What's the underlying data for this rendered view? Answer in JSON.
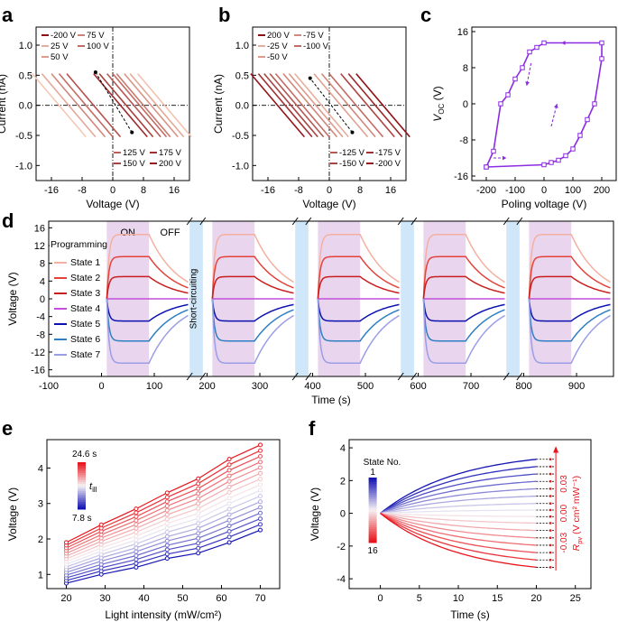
{
  "colors": {
    "state_colors": [
      "#f4b0a0",
      "#e4433c",
      "#c81e1e",
      "#c44fdc",
      "#0b12b0",
      "#2f7fc2",
      "#9a9ee6"
    ],
    "on_band": "#e9d6ee",
    "short_band": "#cfe7f8",
    "hyst": "#8b2be2",
    "pos_shades": [
      "#f7c9b4",
      "#f2a184",
      "#f7a35c",
      "#e4523c",
      "#c2181c",
      "#8e0f14"
    ],
    "neg_shades": [
      "#8e0f14",
      "#c2181c",
      "#e4523c",
      "#f7a35c",
      "#f2a184",
      "#f7c9b4"
    ]
  },
  "panels": {
    "a": {
      "label": "a"
    },
    "b": {
      "label": "b"
    },
    "c": {
      "label": "c"
    },
    "d": {
      "label": "d"
    },
    "e": {
      "label": "e"
    },
    "f": {
      "label": "f"
    }
  },
  "chart_data": [
    {
      "id": "a",
      "type": "line",
      "xlabel": "Voltage (V)",
      "ylabel": "Current (nA)",
      "xlim": [
        -20,
        20
      ],
      "ylim": [
        -1.25,
        1.3
      ],
      "xticks": [
        -16,
        -8,
        0,
        8,
        16
      ],
      "yticks": [
        -1.0,
        -0.5,
        0.0,
        0.5,
        1.0
      ],
      "legend_top": [
        {
          "name": "-200 V",
          "voc": -14
        },
        {
          "name": "75 V",
          "voc": 5.5
        },
        {
          "name": "25 V",
          "voc": 2
        },
        {
          "name": "100 V",
          "voc": 7
        },
        {
          "name": "50 V",
          "voc": 3.5
        }
      ],
      "legend_bottom": [
        {
          "name": "125 V",
          "voc": 8
        },
        {
          "name": "175 V",
          "voc": 11.5
        },
        {
          "name": "150 V",
          "voc": 10
        },
        {
          "name": "200 V",
          "voc": 13.5
        }
      ],
      "series_voc": [
        -14,
        -11.5,
        -9,
        -7,
        -5,
        2,
        3.5,
        5.5,
        7,
        8,
        10,
        11.5,
        13.5
      ],
      "slope_nA_per_V": -0.075,
      "line_halfwidth_V": 7
    },
    {
      "id": "b",
      "type": "line",
      "xlabel": "Voltage (V)",
      "ylabel": "Current (nA)",
      "xlim": [
        -20,
        20
      ],
      "ylim": [
        -1.25,
        1.3
      ],
      "xticks": [
        -16,
        -8,
        0,
        8,
        16
      ],
      "yticks": [
        -1.0,
        -0.5,
        0.0,
        0.5,
        1.0
      ],
      "legend_top": [
        {
          "name": "200 V",
          "voc": 14
        },
        {
          "name": "-75 V",
          "voc": -5
        },
        {
          "name": "-25 V",
          "voc": -2
        },
        {
          "name": "-100 V",
          "voc": -7
        },
        {
          "name": "-50 V",
          "voc": -3.5
        }
      ],
      "legend_bottom": [
        {
          "name": "-125 V",
          "voc": -8.5
        },
        {
          "name": "-175 V",
          "voc": -11.5
        },
        {
          "name": "-150 V",
          "voc": -10
        },
        {
          "name": "-200 V",
          "voc": -13.5
        }
      ],
      "series_voc": [
        -13.5,
        -11.5,
        -10,
        -8.5,
        -7,
        -5,
        -3.5,
        -2,
        3,
        5,
        7,
        10,
        12,
        14
      ],
      "slope_nA_per_V": -0.075,
      "line_halfwidth_V": 7
    },
    {
      "id": "c",
      "type": "scatter",
      "xlabel": "Poling voltage (V)",
      "ylabel": "V",
      "ylabel_sub": "OC",
      "ylabel_unit": " (V)",
      "xlim": [
        -250,
        250
      ],
      "ylim": [
        -17,
        17
      ],
      "xticks": [
        -200,
        -100,
        0,
        100,
        200
      ],
      "yticks": [
        -16,
        -8,
        0,
        8,
        16
      ],
      "x": [
        -200,
        -175,
        -150,
        -125,
        -100,
        -75,
        -50,
        -25,
        0,
        200,
        200,
        175,
        150,
        125,
        100,
        75,
        50,
        25,
        0,
        -200
      ],
      "y": [
        -14,
        -10.5,
        0,
        2,
        5.5,
        8,
        11.5,
        12.5,
        13.5,
        13.5,
        10,
        0,
        -3.5,
        -7,
        -10,
        -11.5,
        -12.5,
        -13,
        -13.5,
        -14
      ]
    },
    {
      "id": "d",
      "type": "line",
      "xlabel": "Time (s)",
      "ylabel": "Voltage (V)",
      "xlim": [
        -100,
        970
      ],
      "ylim": [
        -17.5,
        17.5
      ],
      "xticks": [
        -100,
        0,
        100,
        200,
        300,
        400,
        500,
        600,
        700,
        800,
        900
      ],
      "yticks": [
        -16,
        -12,
        -8,
        -4,
        0,
        4,
        8,
        12,
        16
      ],
      "on_label": "ON",
      "off_label": "OFF",
      "programming_label": "Programming",
      "short_label": "Short-circuiting",
      "cycles": [
        {
          "start": 10,
          "on": 10,
          "off": 90,
          "end": 165
        },
        {
          "start": 210,
          "on": 210,
          "off": 290,
          "end": 365
        },
        {
          "start": 410,
          "on": 410,
          "off": 490,
          "end": 565
        },
        {
          "start": 610,
          "on": 610,
          "off": 690,
          "end": 765
        },
        {
          "start": 810,
          "on": 810,
          "off": 890,
          "end": 965
        }
      ],
      "short_bands": [
        [
          167,
          192
        ],
        [
          367,
          392
        ],
        [
          567,
          592
        ],
        [
          767,
          792
        ]
      ],
      "series": [
        {
          "name": "State 1",
          "value": 14.5
        },
        {
          "name": "State 2",
          "value": 9.5
        },
        {
          "name": "State 3",
          "value": 5
        },
        {
          "name": "State 4",
          "value": 0
        },
        {
          "name": "State 5",
          "value": -5
        },
        {
          "name": "State 6",
          "value": -9.5
        },
        {
          "name": "State 7",
          "value": -14.5
        }
      ]
    },
    {
      "id": "e",
      "type": "line",
      "xlabel": "Light intensity (mW/cm²)",
      "ylabel": "Voltage (V)",
      "xlim": [
        15,
        75
      ],
      "ylim": [
        0.6,
        4.8
      ],
      "xticks": [
        20,
        30,
        40,
        50,
        60,
        70
      ],
      "yticks": [
        1,
        2,
        3,
        4
      ],
      "x": [
        20,
        29,
        38,
        46,
        54,
        62,
        70
      ],
      "colorbar_max": "24.6 s",
      "colorbar_min": "7.8 s",
      "colorbar_var": "t",
      "colorbar_var_sub": "ill",
      "series_count": 16,
      "y_low": [
        0.75,
        1.0,
        1.2,
        1.45,
        1.6,
        1.9,
        2.25
      ],
      "y_high": [
        1.9,
        2.4,
        2.85,
        3.3,
        3.7,
        4.25,
        4.65
      ]
    },
    {
      "id": "f",
      "type": "line",
      "xlabel": "Time (s)",
      "ylabel": "Voltage (V)",
      "xlim": [
        -4,
        27
      ],
      "ylim": [
        -4.6,
        4.5
      ],
      "xticks": [
        0,
        5,
        10,
        15,
        20,
        25
      ],
      "yticks": [
        -4,
        -2,
        0,
        2,
        4
      ],
      "colorbar_title": "State No.",
      "colorbar_top": "1",
      "colorbar_bottom": "16",
      "rpv_label": "R",
      "rpv_sub": "pv",
      "rpv_unit": " (V cm² mW⁻¹)",
      "rpv_ticks": [
        "0.03",
        "0.00",
        "-0.03"
      ],
      "final_values": [
        3.3,
        2.85,
        2.4,
        1.95,
        1.5,
        1.05,
        0.6,
        0.2,
        -0.2,
        -0.6,
        -1.05,
        -1.5,
        -1.95,
        -2.4,
        -2.85,
        -3.3
      ],
      "t_end": 20
    }
  ]
}
